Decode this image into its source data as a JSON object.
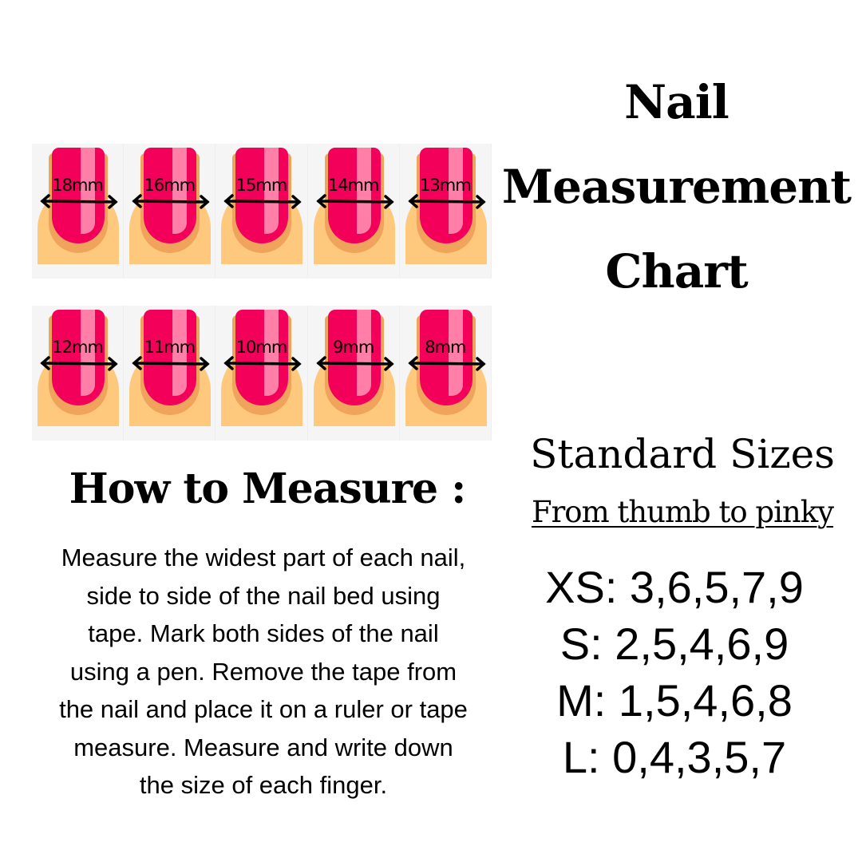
{
  "title": "Nail Measurement Chart",
  "nail_rows": [
    [
      "18mm",
      "16mm",
      "15mm",
      "14mm",
      "13mm"
    ],
    [
      "12mm",
      "11mm",
      "10mm",
      "9mm",
      "8mm"
    ]
  ],
  "colors": {
    "nail": "#f3005a",
    "highlight": "#ff7fa8",
    "skin": "#fec97d",
    "nail_shadow": "#f0a35b",
    "panel": "#f5f5f5"
  },
  "how_to": {
    "heading": "How to Measure :",
    "text": "Measure the widest part of each nail, side to side of the nail bed using tape. Mark both sides of the nail using a pen. Remove the tape from the nail and place it on a ruler or tape measure. Measure and write down the size of each finger."
  },
  "standard_sizes": {
    "heading": "Standard Sizes",
    "subheading": "From thumb to pinky",
    "sizes": [
      "XS: 3,6,5,7,9",
      "S: 2,5,4,6,9",
      "M: 1,5,4,6,8",
      "L: 0,4,3,5,7"
    ]
  }
}
